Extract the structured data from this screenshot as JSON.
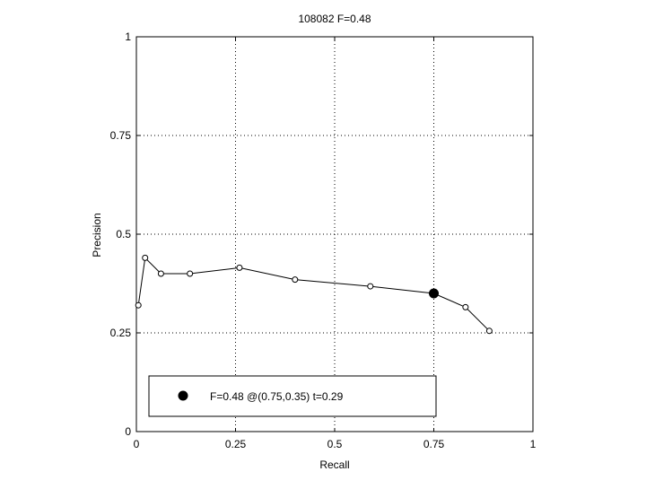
{
  "chart_data": {
    "type": "line",
    "title": "108082 F=0.48",
    "xlabel": "Recall",
    "ylabel": "Precision",
    "xlim": [
      0,
      1
    ],
    "ylim": [
      0,
      1
    ],
    "grid": true,
    "xticks": [
      0,
      0.25,
      0.5,
      0.75,
      1
    ],
    "xtick_labels": [
      "0",
      "0.25",
      "0.5",
      "0.75",
      "1"
    ],
    "yticks": [
      0,
      0.25,
      0.5,
      0.75,
      1
    ],
    "ytick_labels": [
      "0",
      "0.25",
      "0.5",
      "0.75",
      "1"
    ],
    "series": [
      {
        "x": [
          0.005,
          0.022,
          0.062,
          0.135,
          0.26,
          0.4,
          0.59,
          0.75,
          0.83,
          0.89
        ],
        "y": [
          0.32,
          0.44,
          0.4,
          0.4,
          0.415,
          0.385,
          0.368,
          0.35,
          0.315,
          0.255
        ]
      }
    ],
    "highlight_point": {
      "x": 0.75,
      "y": 0.35
    },
    "legend": {
      "placement": "bottom-left",
      "entries": [
        "F=0.48 @(0.75,0.35) t=0.29"
      ]
    }
  }
}
